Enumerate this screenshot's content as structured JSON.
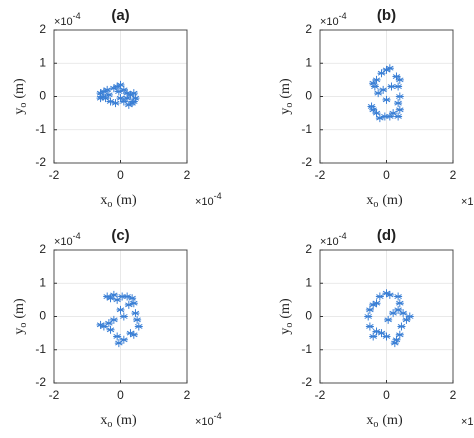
{
  "chart_data": [
    {
      "type": "scatter",
      "title": "(a)",
      "xlabel": {
        "base": "x",
        "sub": "o",
        "unit": "(m)"
      },
      "ylabel": {
        "base": "y",
        "sub": "o",
        "unit": "(m)"
      },
      "multiplier": {
        "base": "×10",
        "exp": "-4"
      },
      "color": "#3a7fd5",
      "grid": true,
      "xlim": [
        -2,
        2
      ],
      "ylim": [
        -2,
        2
      ],
      "xticks": [
        -2,
        0,
        2
      ],
      "yticks": [
        -2,
        -1,
        0,
        1,
        2
      ],
      "x": [
        -0.6,
        -0.55,
        -0.5,
        -0.45,
        -0.4,
        -0.35,
        -0.6,
        -0.3,
        -0.2,
        -0.1,
        0.0,
        -0.05,
        0.1,
        0.2,
        0.3,
        0.4,
        0.45,
        0.35,
        0.25,
        0.1,
        0.0,
        -0.15,
        0.4,
        0.2
      ],
      "values": [
        0.1,
        0.0,
        0.15,
        -0.05,
        0.2,
        0.05,
        -0.05,
        -0.15,
        0.25,
        0.3,
        0.35,
        0.15,
        0.2,
        0.1,
        0.05,
        0.1,
        -0.05,
        -0.2,
        -0.25,
        -0.15,
        -0.05,
        -0.2,
        -0.15,
        -0.05
      ]
    },
    {
      "type": "scatter",
      "title": "(b)",
      "xlabel": {
        "base": "x",
        "sub": "o",
        "unit": "(m)"
      },
      "ylabel": {
        "base": "y",
        "sub": "o",
        "unit": "(m)"
      },
      "multiplier": {
        "base": "×10",
        "exp": "-4"
      },
      "color": "#3a7fd5",
      "grid": true,
      "xlim": [
        -2,
        2
      ],
      "ylim": [
        -2,
        2
      ],
      "xticks": [
        -2,
        0,
        2
      ],
      "yticks": [
        -2,
        -1,
        0,
        1,
        2
      ],
      "x": [
        -0.4,
        -0.35,
        -0.3,
        -0.15,
        0.0,
        0.1,
        0.3,
        0.4,
        0.35,
        0.4,
        0.35,
        0.4,
        0.35,
        0.2,
        0.1,
        -0.05,
        -0.2,
        -0.3,
        -0.4,
        -0.45,
        -0.1,
        0.0,
        0.15,
        -0.25
      ],
      "values": [
        0.4,
        0.3,
        0.5,
        0.7,
        0.8,
        0.85,
        0.6,
        0.5,
        0.3,
        0.0,
        -0.2,
        -0.4,
        -0.6,
        -0.5,
        -0.6,
        -0.6,
        -0.65,
        -0.5,
        -0.4,
        -0.3,
        0.2,
        -0.1,
        0.3,
        0.1
      ]
    },
    {
      "type": "scatter",
      "title": "(c)",
      "xlabel": {
        "base": "x",
        "sub": "o",
        "unit": "(m)"
      },
      "ylabel": {
        "base": "y",
        "sub": "o",
        "unit": "(m)"
      },
      "multiplier": {
        "base": "×10",
        "exp": "-4"
      },
      "color": "#3a7fd5",
      "grid": true,
      "xlim": [
        -2,
        2
      ],
      "ylim": [
        -2,
        2
      ],
      "xticks": [
        -2,
        0,
        2
      ],
      "yticks": [
        -2,
        -1,
        0,
        1,
        2
      ],
      "x": [
        -0.4,
        -0.3,
        -0.2,
        -0.1,
        0.05,
        0.2,
        0.35,
        0.4,
        0.25,
        0.45,
        0.5,
        0.55,
        0.4,
        0.3,
        0.1,
        -0.05,
        -0.1,
        -0.3,
        -0.35,
        -0.6,
        -0.5,
        0.1,
        -0.2,
        0.0
      ],
      "values": [
        0.6,
        0.55,
        0.65,
        0.5,
        0.6,
        0.6,
        0.55,
        0.4,
        0.35,
        0.1,
        -0.1,
        -0.3,
        -0.55,
        -0.5,
        -0.7,
        -0.8,
        -0.6,
        -0.4,
        -0.2,
        -0.25,
        -0.3,
        0.0,
        -0.1,
        0.2
      ]
    },
    {
      "type": "scatter",
      "title": "(d)",
      "xlabel": {
        "base": "x",
        "sub": "o",
        "unit": "(m)"
      },
      "ylabel": {
        "base": "y",
        "sub": "o",
        "unit": "(m)"
      },
      "multiplier": {
        "base": "×10",
        "exp": "-4"
      },
      "color": "#3a7fd5",
      "grid": true,
      "xlim": [
        -2,
        2
      ],
      "ylim": [
        -2,
        2
      ],
      "xticks": [
        -2,
        0,
        2
      ],
      "yticks": [
        -2,
        -1,
        0,
        1,
        2
      ],
      "x": [
        -0.2,
        0.0,
        0.1,
        0.35,
        0.4,
        0.35,
        0.5,
        0.7,
        0.6,
        0.45,
        0.4,
        0.3,
        0.25,
        0.0,
        -0.15,
        -0.3,
        -0.4,
        -0.5,
        -0.55,
        -0.5,
        -0.4,
        -0.3,
        0.05,
        0.2
      ],
      "values": [
        0.6,
        0.7,
        0.65,
        0.6,
        0.4,
        0.2,
        0.1,
        0.0,
        -0.1,
        -0.3,
        -0.55,
        -0.7,
        -0.8,
        -0.6,
        -0.5,
        -0.45,
        -0.6,
        -0.3,
        0.0,
        0.2,
        0.35,
        0.4,
        -0.1,
        0.1
      ]
    }
  ]
}
